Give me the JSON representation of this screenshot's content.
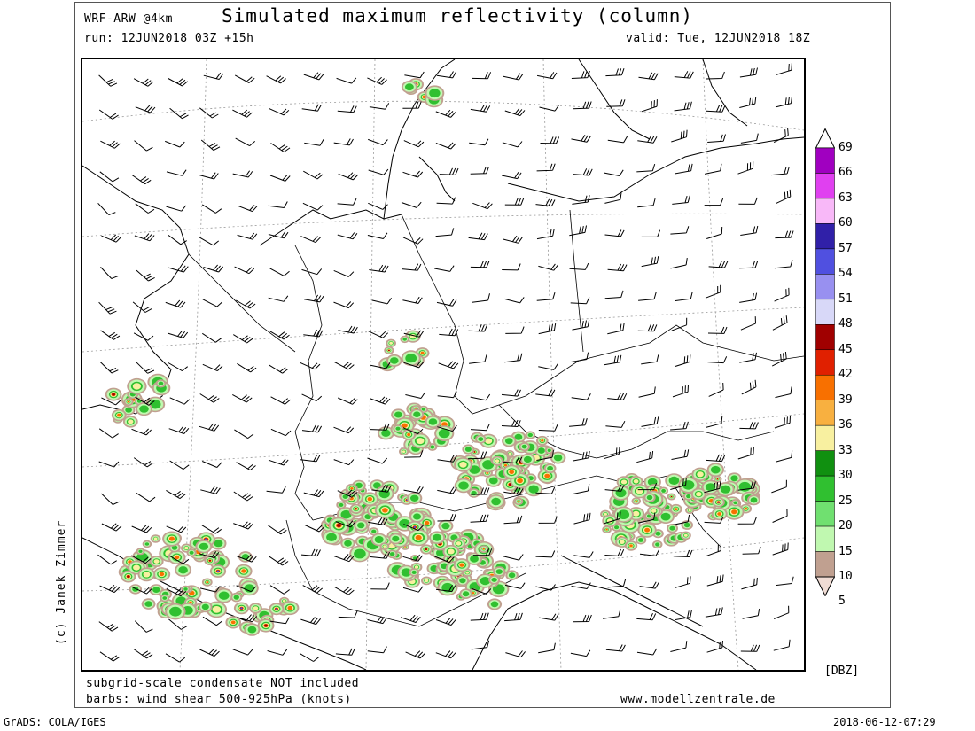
{
  "header": {
    "model": "WRF-ARW @4km",
    "title": "Simulated maximum reflectivity (column)",
    "run": "run: 12JUN2018 03Z +15h",
    "valid": "valid: Tue, 12JUN2018 18Z"
  },
  "author": "(c) Janek Zimmer",
  "notes": {
    "line1": "subgrid-scale condensate NOT included",
    "line2": "barbs: wind shear 500-925hPa (knots)",
    "site": "www.modellzentrale.de"
  },
  "colorbar": {
    "unit": "[DBZ]",
    "levels": [
      {
        "value": "69",
        "color": "#ffffff"
      },
      {
        "value": "66",
        "color": "#a000c0"
      },
      {
        "value": "63",
        "color": "#e040f0"
      },
      {
        "value": "60",
        "color": "#f8b8f8"
      },
      {
        "value": "57",
        "color": "#3020a8"
      },
      {
        "value": "54",
        "color": "#5050e0"
      },
      {
        "value": "51",
        "color": "#9890f0"
      },
      {
        "value": "48",
        "color": "#d8d8f8"
      },
      {
        "value": "45",
        "color": "#a00000"
      },
      {
        "value": "42",
        "color": "#e02000"
      },
      {
        "value": "39",
        "color": "#f87000"
      },
      {
        "value": "36",
        "color": "#f8b040"
      },
      {
        "value": "33",
        "color": "#f8f0a0"
      },
      {
        "value": "30",
        "color": "#109010"
      },
      {
        "value": "25",
        "color": "#30c030"
      },
      {
        "value": "20",
        "color": "#70e070"
      },
      {
        "value": "15",
        "color": "#c0f8b0"
      },
      {
        "value": "10",
        "color": "#c0a090"
      },
      {
        "value": "5",
        "color": "#f0dcd4"
      }
    ]
  },
  "footer": {
    "left": "GrADS: COLA/IGES",
    "right": "2018-06-12-07:29"
  },
  "icons": [
    "wind-barb-icon",
    "colorbar-arrow-icon"
  ]
}
